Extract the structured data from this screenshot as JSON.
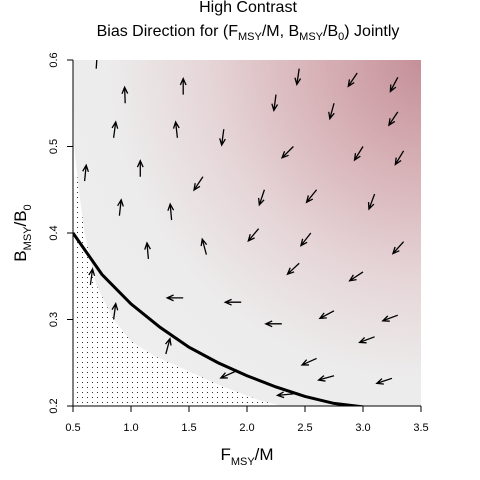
{
  "chart_data": {
    "type": "heatmap",
    "title": "High Contrast",
    "subtitle": {
      "prefix": "Bias Direction for (F",
      "f_sub": "MSY",
      "mid": "/M, B",
      "b_sub": "MSY",
      "mid2": "/B",
      "b0_sub": "0",
      "suffix": ") Jointly"
    },
    "xlabel": {
      "main": "F",
      "sub": "MSY",
      "rest": "/M"
    },
    "ylabel": {
      "main": "B",
      "sub": "MSY",
      "rest": "/B",
      "sub2": "0"
    },
    "xlim": [
      0.5,
      3.5
    ],
    "ylim": [
      0.2,
      0.6
    ],
    "x_ticks": [
      "0.5",
      "1.0",
      "1.5",
      "2.0",
      "2.5",
      "3.0",
      "3.5"
    ],
    "y_ticks": [
      "0.2",
      "0.3",
      "0.4",
      "0.5",
      "0.6"
    ],
    "colors": {
      "background_low": "#eeeeee",
      "background_high": "#c48d96",
      "curve": "#000000",
      "arrow": "#000000"
    },
    "curve": {
      "x": [
        0.5,
        0.75,
        1.0,
        1.25,
        1.5,
        1.75,
        2.0,
        2.25,
        2.5,
        2.75,
        3.0
      ],
      "y": [
        0.4,
        0.352,
        0.318,
        0.291,
        0.268,
        0.25,
        0.235,
        0.222,
        0.211,
        0.203,
        0.199
      ]
    },
    "infeasible_region": {
      "description_visible": false,
      "x": [
        0.5,
        0.5,
        0.6,
        0.7,
        0.8,
        1.0,
        1.2,
        1.4,
        1.6,
        1.8,
        2.0,
        2.2,
        2.3
      ],
      "y": [
        0.6,
        0.2,
        0.2,
        0.2,
        0.2,
        0.2,
        0.2,
        0.2,
        0.2,
        0.2,
        0.2,
        0.2,
        0.2
      ],
      "boundary_x": [
        0.5,
        0.51,
        0.55,
        0.6,
        0.7,
        0.85,
        1.0,
        1.2,
        1.5,
        1.8,
        2.1,
        2.3
      ],
      "boundary_y": [
        0.6,
        0.5,
        0.45,
        0.4,
        0.34,
        0.3,
        0.275,
        0.258,
        0.24,
        0.222,
        0.207,
        0.2
      ]
    },
    "arrows": [
      {
        "x": 0.7,
        "y": 0.59,
        "dx": -0.01,
        "dy": -0.02
      },
      {
        "x": 1.2,
        "y": 0.6,
        "dx": 0.005,
        "dy": -0.01
      },
      {
        "x": 1.95,
        "y": 0.6,
        "dx": -0.01,
        "dy": -0.006
      },
      {
        "x": 2.45,
        "y": 0.59,
        "dx": 0.02,
        "dy": 0.018
      },
      {
        "x": 2.95,
        "y": 0.585,
        "dx": 0.08,
        "dy": 0.016
      },
      {
        "x": 3.3,
        "y": 0.58,
        "dx": 0.09,
        "dy": 0.023
      },
      {
        "x": 0.95,
        "y": 0.55,
        "dx": 0.004,
        "dy": -0.015
      },
      {
        "x": 1.45,
        "y": 0.56,
        "dx": 0.0,
        "dy": -0.012
      },
      {
        "x": 2.25,
        "y": 0.56,
        "dx": 0.02,
        "dy": 0.02
      },
      {
        "x": 2.75,
        "y": 0.55,
        "dx": 0.04,
        "dy": 0.02
      },
      {
        "x": 3.3,
        "y": 0.54,
        "dx": 0.1,
        "dy": 0.02
      },
      {
        "x": 0.85,
        "y": 0.51,
        "dx": -0.015,
        "dy": -0.015
      },
      {
        "x": 1.4,
        "y": 0.51,
        "dx": 0.01,
        "dy": -0.012
      },
      {
        "x": 1.8,
        "y": 0.52,
        "dx": 0.02,
        "dy": 0.02
      },
      {
        "x": 2.4,
        "y": 0.5,
        "dx": 0.06,
        "dy": 0.008
      },
      {
        "x": 3.0,
        "y": 0.5,
        "dx": 0.07,
        "dy": 0.015
      },
      {
        "x": 3.35,
        "y": 0.495,
        "dx": 0.09,
        "dy": 0.02
      },
      {
        "x": 0.6,
        "y": 0.46,
        "dx": -0.015,
        "dy": -0.02
      },
      {
        "x": 1.08,
        "y": 0.465,
        "dx": 0.0,
        "dy": -0.015
      },
      {
        "x": 1.62,
        "y": 0.465,
        "dx": 0.025,
        "dy": 0.005
      },
      {
        "x": 2.15,
        "y": 0.45,
        "dx": 0.05,
        "dy": 0.02
      },
      {
        "x": 2.6,
        "y": 0.45,
        "dx": 0.06,
        "dy": 0.01
      },
      {
        "x": 3.1,
        "y": 0.445,
        "dx": 0.07,
        "dy": 0.025
      },
      {
        "x": 0.9,
        "y": 0.42,
        "dx": -0.015,
        "dy": -0.018
      },
      {
        "x": 1.35,
        "y": 0.415,
        "dx": 0.01,
        "dy": -0.015
      },
      {
        "x": 2.1,
        "y": 0.405,
        "dx": 0.05,
        "dy": 0.008
      },
      {
        "x": 2.55,
        "y": 0.4,
        "dx": 0.07,
        "dy": 0.012
      },
      {
        "x": 3.35,
        "y": 0.39,
        "dx": 0.1,
        "dy": 0.015
      },
      {
        "x": 1.15,
        "y": 0.37,
        "dx": 0.01,
        "dy": -0.015
      },
      {
        "x": 1.65,
        "y": 0.375,
        "dx": 0.02,
        "dy": -0.01
      },
      {
        "x": 2.45,
        "y": 0.365,
        "dx": 0.04,
        "dy": 0.005
      },
      {
        "x": 3.0,
        "y": 0.355,
        "dx": 0.09,
        "dy": 0.008
      },
      {
        "x": 0.65,
        "y": 0.34,
        "dx": -0.01,
        "dy": -0.01
      },
      {
        "x": 1.45,
        "y": 0.325,
        "dx": 0.04,
        "dy": 0.0
      },
      {
        "x": 1.95,
        "y": 0.32,
        "dx": 0.05,
        "dy": 0.0
      },
      {
        "x": 2.75,
        "y": 0.31,
        "dx": 0.07,
        "dy": 0.005
      },
      {
        "x": 3.3,
        "y": 0.305,
        "dx": 0.1,
        "dy": 0.005
      },
      {
        "x": 0.85,
        "y": 0.3,
        "dx": -0.01,
        "dy": -0.01
      },
      {
        "x": 2.3,
        "y": 0.295,
        "dx": 0.05,
        "dy": 0.0
      },
      {
        "x": 3.1,
        "y": 0.28,
        "dx": 0.1,
        "dy": 0.005
      },
      {
        "x": 1.3,
        "y": 0.26,
        "dx": -0.01,
        "dy": -0.005
      },
      {
        "x": 2.6,
        "y": 0.255,
        "dx": 0.05,
        "dy": 0.003
      },
      {
        "x": 1.9,
        "y": 0.24,
        "dx": 0.05,
        "dy": 0.003
      },
      {
        "x": 2.75,
        "y": 0.235,
        "dx": 0.08,
        "dy": 0.003
      },
      {
        "x": 3.25,
        "y": 0.232,
        "dx": 0.09,
        "dy": 0.004
      },
      {
        "x": 2.4,
        "y": 0.214,
        "dx": 0.08,
        "dy": 0.001
      }
    ]
  }
}
